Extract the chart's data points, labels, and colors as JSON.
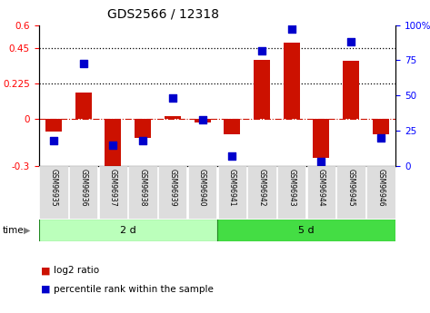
{
  "title": "GDS2566 / 12318",
  "samples": [
    "GSM96935",
    "GSM96936",
    "GSM96937",
    "GSM96938",
    "GSM96939",
    "GSM96940",
    "GSM96941",
    "GSM96942",
    "GSM96943",
    "GSM96944",
    "GSM96945",
    "GSM96946"
  ],
  "log2_ratio": [
    -0.08,
    0.17,
    -0.32,
    -0.12,
    0.02,
    -0.02,
    -0.1,
    0.38,
    0.49,
    -0.25,
    0.37,
    -0.1
  ],
  "percentile_rank": [
    18,
    73,
    15,
    18,
    48,
    33,
    7,
    82,
    97,
    3,
    88,
    20
  ],
  "groups": [
    {
      "label": "2 d",
      "start": 0,
      "end": 6,
      "color": "#bbffbb"
    },
    {
      "label": "5 d",
      "start": 6,
      "end": 12,
      "color": "#44dd44"
    }
  ],
  "bar_color": "#cc1100",
  "dot_color": "#0000cc",
  "ylim_left": [
    -0.3,
    0.6
  ],
  "ylim_right": [
    0,
    100
  ],
  "yticks_left": [
    -0.3,
    0.0,
    0.225,
    0.45,
    0.6
  ],
  "yticks_left_labels": [
    "-0.3",
    "0",
    "0.225",
    "0.45",
    "0.6"
  ],
  "yticks_right": [
    0,
    25,
    50,
    75,
    100
  ],
  "yticks_right_labels": [
    "0",
    "25",
    "50",
    "75",
    "100%"
  ],
  "hlines": [
    0.225,
    0.45
  ],
  "zero_line": 0.0,
  "bar_width": 0.55,
  "dot_size": 35,
  "legend_red": "log2 ratio",
  "legend_blue": "percentile rank within the sample",
  "time_label": "time",
  "tick_label_bg": "#dddddd",
  "background_color": "#ffffff"
}
